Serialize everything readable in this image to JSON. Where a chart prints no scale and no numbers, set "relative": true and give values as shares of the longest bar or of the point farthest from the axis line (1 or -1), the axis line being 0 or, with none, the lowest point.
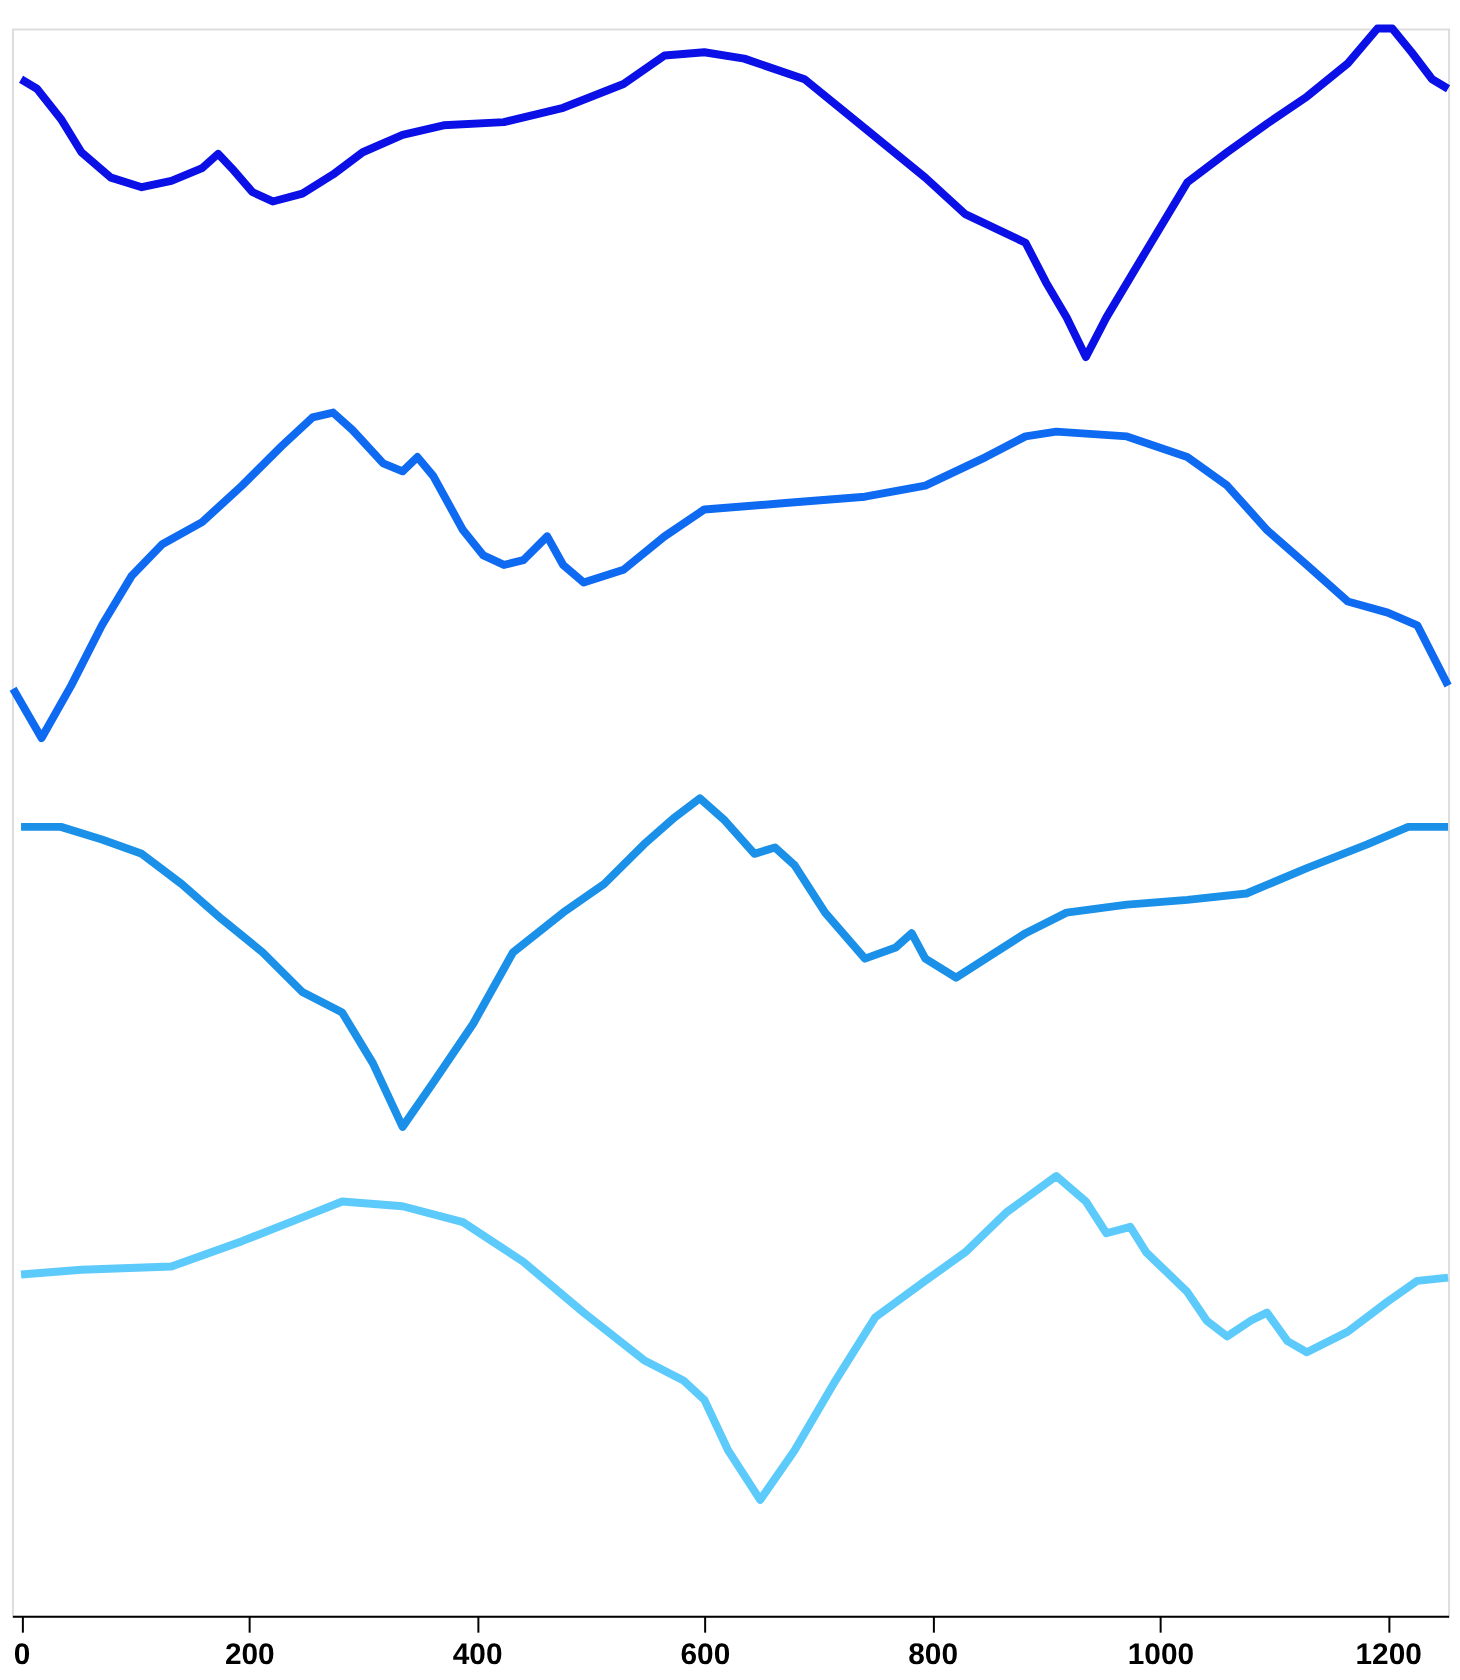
{
  "chart_data": {
    "type": "line",
    "relative": true,
    "xlim": [
      -8,
      1253
    ],
    "xticks": [
      0,
      200,
      400,
      600,
      800,
      1000,
      1200
    ],
    "grid": false,
    "legend": false,
    "marker": "none",
    "line_style": "solid",
    "tick_labels": "x",
    "series": [
      {
        "color": "#0a10e6",
        "x": [
          0,
          14,
          35,
          53,
          79,
          106,
          132,
          159,
          173,
          185,
          203,
          221,
          247,
          274,
          300,
          335,
          371,
          424,
          476,
          529,
          565,
          600,
          635,
          688,
          741,
          794,
          829,
          882,
          900,
          918,
          935,
          953,
          988,
          1024,
          1059,
          1094,
          1129,
          1165,
          1191,
          1204,
          1221,
          1239,
          1253
        ],
        "values": [
          0.968,
          0.962,
          0.943,
          0.922,
          0.906,
          0.9,
          0.904,
          0.912,
          0.921,
          0.912,
          0.897,
          0.891,
          0.896,
          0.908,
          0.922,
          0.933,
          0.939,
          0.941,
          0.95,
          0.965,
          0.983,
          0.985,
          0.981,
          0.968,
          0.937,
          0.906,
          0.883,
          0.865,
          0.84,
          0.818,
          0.793,
          0.818,
          0.86,
          0.903,
          0.922,
          0.94,
          0.957,
          0.978,
          1.0,
          1.0,
          0.985,
          0.968,
          0.962
        ]
      },
      {
        "color": "#0f6af2",
        "x": [
          -7,
          18,
          44,
          71,
          97,
          124,
          159,
          194,
          229,
          256,
          274,
          291,
          318,
          335,
          348,
          362,
          388,
          406,
          424,
          441,
          462,
          476,
          494,
          529,
          565,
          600,
          671,
          741,
          794,
          847,
          882,
          909,
          971,
          1024,
          1059,
          1094,
          1129,
          1165,
          1200,
          1226,
          1253
        ],
        "values": [
          0.584,
          0.553,
          0.586,
          0.624,
          0.655,
          0.675,
          0.689,
          0.712,
          0.737,
          0.755,
          0.758,
          0.747,
          0.726,
          0.721,
          0.73,
          0.718,
          0.684,
          0.668,
          0.662,
          0.665,
          0.68,
          0.662,
          0.651,
          0.659,
          0.68,
          0.697,
          0.701,
          0.705,
          0.712,
          0.73,
          0.743,
          0.746,
          0.743,
          0.73,
          0.712,
          0.684,
          0.662,
          0.639,
          0.632,
          0.624,
          0.586
        ]
      },
      {
        "color": "#1a90e8",
        "x": [
          0,
          35,
          71,
          106,
          141,
          176,
          212,
          247,
          282,
          309,
          335,
          362,
          397,
          432,
          476,
          512,
          547,
          574,
          596,
          618,
          644,
          662,
          679,
          706,
          741,
          768,
          782,
          794,
          821,
          847,
          882,
          918,
          971,
          1024,
          1076,
          1129,
          1182,
          1218,
          1253
        ],
        "values": [
          0.497,
          0.497,
          0.489,
          0.48,
          0.461,
          0.439,
          0.418,
          0.393,
          0.38,
          0.348,
          0.308,
          0.336,
          0.373,
          0.418,
          0.443,
          0.461,
          0.486,
          0.503,
          0.515,
          0.501,
          0.48,
          0.484,
          0.473,
          0.443,
          0.414,
          0.421,
          0.43,
          0.414,
          0.402,
          0.414,
          0.43,
          0.443,
          0.448,
          0.451,
          0.455,
          0.471,
          0.486,
          0.497,
          0.497
        ]
      },
      {
        "color": "#5ccafa",
        "x": [
          0,
          53,
          132,
          194,
          247,
          282,
          335,
          388,
          441,
          494,
          547,
          582,
          600,
          621,
          649,
          679,
          715,
          750,
          794,
          829,
          865,
          909,
          935,
          953,
          974,
          988,
          1024,
          1041,
          1059,
          1080,
          1094,
          1112,
          1129,
          1165,
          1200,
          1226,
          1253
        ],
        "values": [
          0.215,
          0.218,
          0.22,
          0.236,
          0.251,
          0.261,
          0.258,
          0.248,
          0.223,
          0.191,
          0.161,
          0.148,
          0.136,
          0.104,
          0.073,
          0.104,
          0.148,
          0.188,
          0.211,
          0.229,
          0.254,
          0.277,
          0.261,
          0.241,
          0.245,
          0.229,
          0.204,
          0.186,
          0.176,
          0.186,
          0.191,
          0.173,
          0.166,
          0.179,
          0.198,
          0.211,
          0.213
        ]
      }
    ]
  }
}
